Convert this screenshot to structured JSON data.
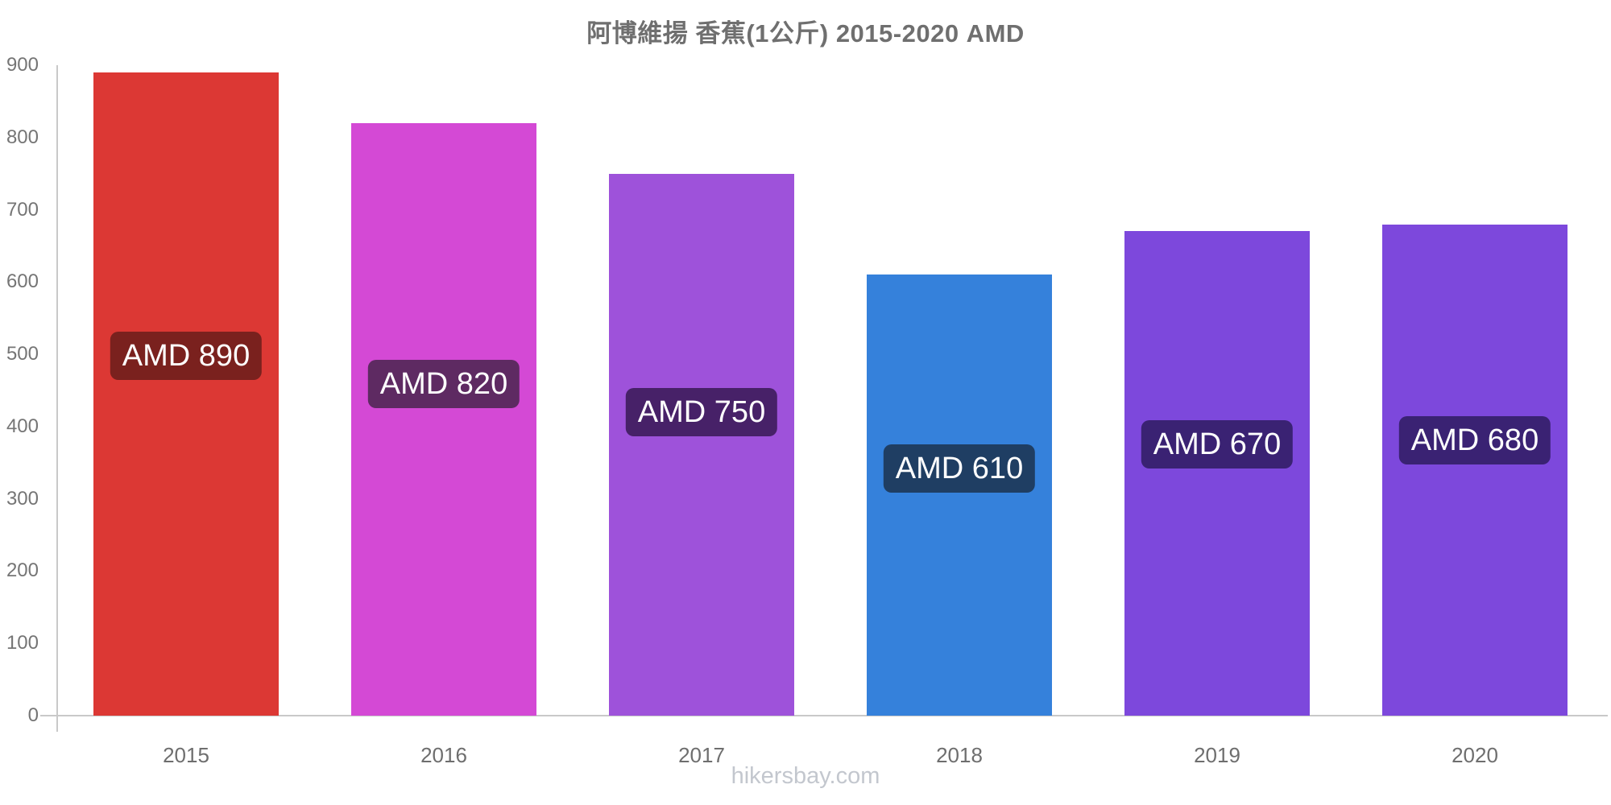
{
  "chart_data": {
    "type": "bar",
    "title": "阿博維揚 香蕉(1公斤) 2015-2020 AMD",
    "categories": [
      "2015",
      "2016",
      "2017",
      "2018",
      "2019",
      "2020"
    ],
    "values": [
      890,
      820,
      750,
      610,
      670,
      680
    ],
    "value_labels": [
      "AMD 890",
      "AMD 820",
      "AMD 750",
      "AMD 610",
      "AMD 670",
      "AMD 680"
    ],
    "currency": "AMD",
    "xlabel": "",
    "ylabel": "",
    "ylim": [
      0,
      900
    ],
    "yticks": [
      0,
      100,
      200,
      300,
      400,
      500,
      600,
      700,
      800,
      900
    ],
    "grid": false,
    "legend": false,
    "bar_colors": [
      "#dc3834",
      "#d449d5",
      "#9e52da",
      "#3581db",
      "#7d48dc",
      "#7d48dc"
    ],
    "badge_colors": [
      "#7a211e",
      "#5e2a62",
      "#472168",
      "#1f3e63",
      "#3a2273",
      "#3a2273"
    ],
    "axis_color": "#c9c9c9",
    "title_color": "#6f6f6f",
    "ytick_color": "#757575",
    "xtick_color": "#6e6e6e",
    "watermark": "hikersbay.com",
    "watermark_color": "#c3c7ce"
  }
}
